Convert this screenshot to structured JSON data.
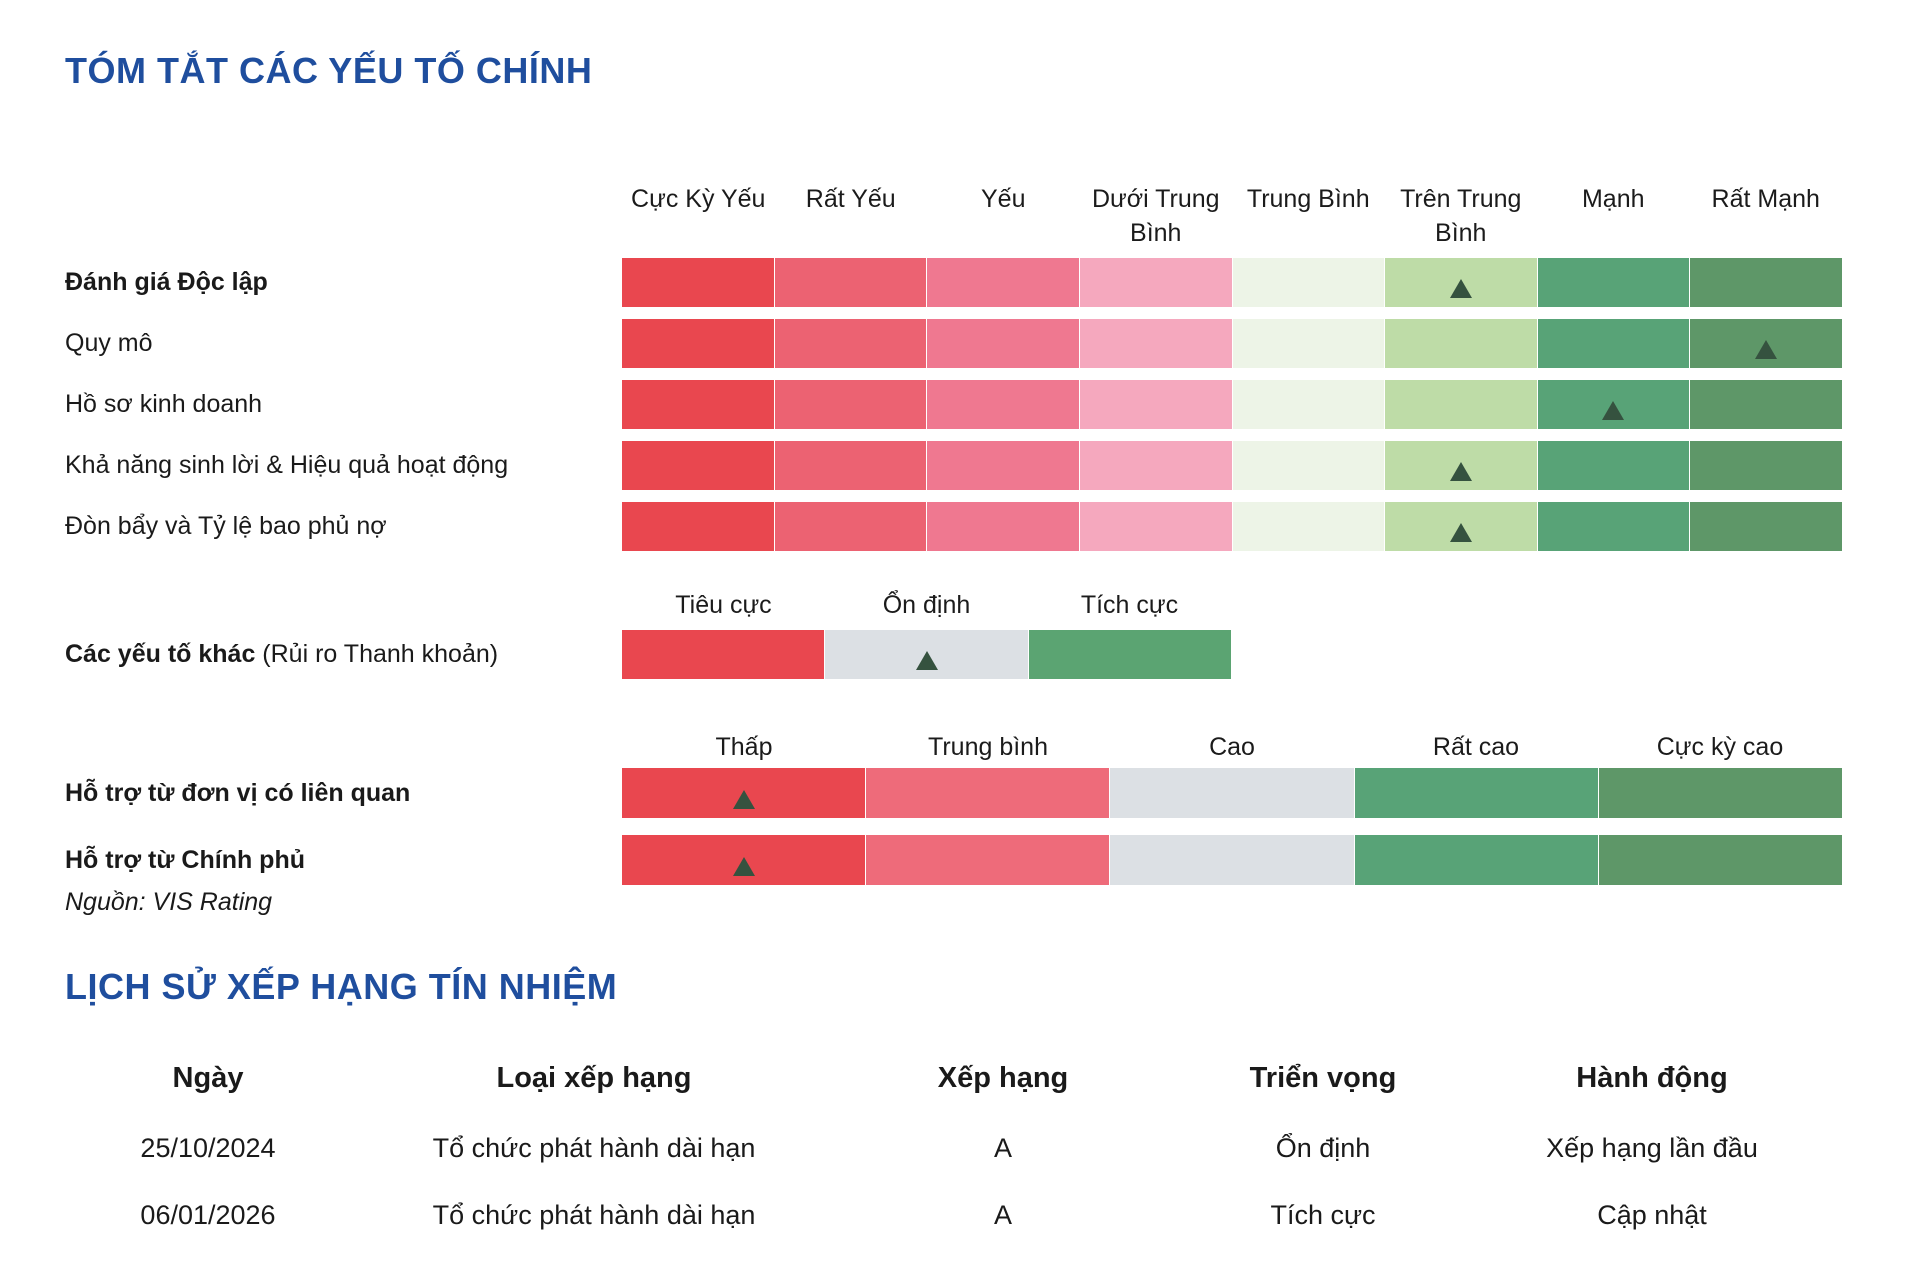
{
  "colors": {
    "title_blue": "#1F4E9E",
    "text": "#1A1A1A",
    "marker": "#35523F",
    "scale8": [
      "#E9474F",
      "#EC6272",
      "#EF7890",
      "#F5A8BE",
      "#EDF4E7",
      "#BEDCA7",
      "#58A377",
      "#5E9768"
    ],
    "scale3": [
      "#E9474F",
      "#DCE0E4",
      "#5BA472"
    ],
    "scale5": [
      "#E9474F",
      "#EE6B7A",
      "#DCE0E4",
      "#58A377",
      "#5E9768"
    ]
  },
  "key_factors": {
    "title": "TÓM TẮT CÁC YẾU TỐ CHÍNH",
    "scale8_labels": [
      "Cực Kỳ Yếu",
      "Rất Yếu",
      "Yếu",
      "Dưới Trung Bình",
      "Trung Bình",
      "Trên Trung Bình",
      "Mạnh",
      "Rất Mạnh"
    ],
    "rows": [
      {
        "label": "Đánh giá Độc lập",
        "rating": "Trên Trung Bình",
        "marker_index": 5
      },
      {
        "label": "Quy mô",
        "rating": "Rất Mạnh",
        "marker_index": 7
      },
      {
        "label": "Hồ sơ kinh doanh",
        "rating": "Mạnh",
        "marker_index": 6
      },
      {
        "label": "Khả năng sinh lời & Hiệu quả hoạt động",
        "rating": "Trên Trung Bình",
        "marker_index": 5
      },
      {
        "label": "Đòn bẩy và Tỷ lệ bao phủ nợ",
        "rating": "Trên Trung Bình",
        "marker_index": 5
      }
    ],
    "other_factors": {
      "label_bold": "Các yếu tố khác",
      "label_normal": " (Rủi ro Thanh khoản)",
      "scale3_labels": [
        "Tiêu cực",
        "Ổn định",
        "Tích cực"
      ],
      "rating": "Ổn định",
      "marker_index": 1
    },
    "support": {
      "scale5_labels": [
        "Thấp",
        "Trung bình",
        "Cao",
        "Rất cao",
        "Cực kỳ cao"
      ],
      "rows": [
        {
          "label": "Hỗ trợ từ đơn vị có liên quan",
          "rating": "Thấp",
          "marker_index": 0
        },
        {
          "label": "Hỗ trợ từ Chính phủ",
          "rating": "Thấp",
          "marker_index": 0
        }
      ]
    },
    "source": "Nguồn: VIS Rating"
  },
  "rating_history": {
    "title": "LỊCH SỬ XẾP HẠNG TÍN NHIỆM",
    "columns": [
      "Ngày",
      "Loại xếp hạng",
      "Xếp hạng",
      "Triển vọng",
      "Hành động"
    ],
    "rows": [
      [
        "25/10/2024",
        "Tổ chức phát hành dài hạn",
        "A",
        "Ổn định",
        "Xếp hạng lần đầu"
      ],
      [
        "06/01/2026",
        "Tổ chức phát hành dài hạn",
        "A",
        "Tích cực",
        "Cập nhật"
      ]
    ]
  }
}
